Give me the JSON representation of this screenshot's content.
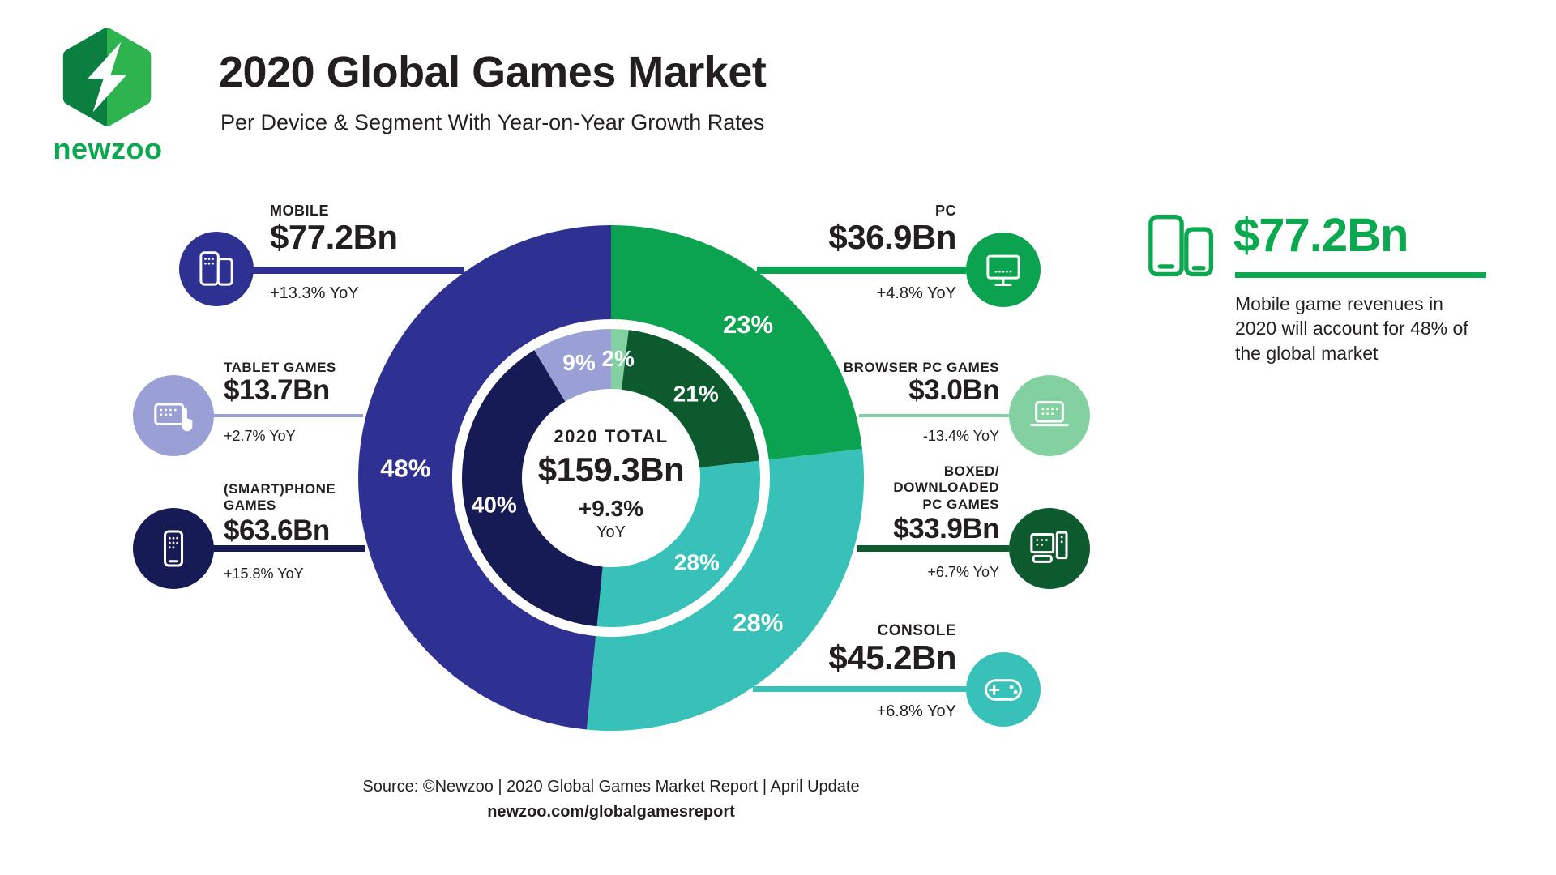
{
  "header": {
    "brand": "newzoo",
    "title": "2020 Global Games Market",
    "subtitle": "Per Device & Segment With Year-on-Year Growth Rates"
  },
  "colors": {
    "accent_green": "#0aa84f",
    "mobile_blue": "#2e3192",
    "smartphone_navy": "#171b55",
    "tablet_lavender": "#9aa0d6",
    "pc_green": "#0ba350",
    "browser_light_green": "#83d0a1",
    "boxed_dark_green": "#0d5a2e",
    "console_teal": "#37c1b8",
    "text_dark": "#231f20"
  },
  "chart_data": {
    "type": "pie",
    "variant": "double-ring donut (outer = device, inner = segment)",
    "title": "2020 Global Games Market",
    "subtitle": "Per Device & Segment With Year-on-Year Growth Rates",
    "total": {
      "label": "2020 TOTAL",
      "value_bn": 159.3,
      "value_label": "$159.3Bn",
      "yoy": "+9.3%",
      "yoy_suffix": "YoY"
    },
    "outer_ring_clockwise_from_top": [
      {
        "name": "PC",
        "value_bn": 36.9,
        "share_pct": 23,
        "yoy": "+4.8%",
        "color": "#0ba350"
      },
      {
        "name": "Console",
        "value_bn": 45.2,
        "share_pct": 28,
        "yoy": "+6.8%",
        "color": "#37c1b8"
      },
      {
        "name": "Mobile",
        "value_bn": 77.2,
        "share_pct": 48,
        "yoy": "+13.3%",
        "color": "#2e3192"
      }
    ],
    "inner_ring_clockwise_from_top": [
      {
        "name": "Browser PC Games",
        "value_bn": 3.0,
        "share_pct": 2,
        "yoy": "-13.4%",
        "color": "#83d0a1"
      },
      {
        "name": "Boxed/Downloaded PC Games",
        "value_bn": 33.9,
        "share_pct": 21,
        "yoy": "+6.7%",
        "color": "#0d5a2e"
      },
      {
        "name": "Console",
        "value_bn": 45.2,
        "share_pct": 28,
        "yoy": "+6.8%",
        "color": "#37c1b8"
      },
      {
        "name": "(Smart)phone Games",
        "value_bn": 63.6,
        "share_pct": 40,
        "yoy": "+15.8%",
        "color": "#171b55"
      },
      {
        "name": "Tablet Games",
        "value_bn": 13.7,
        "share_pct": 9,
        "yoy": "+2.7%",
        "color": "#9aa0d6"
      }
    ]
  },
  "callouts": {
    "mobile": {
      "label": "MOBILE",
      "value": "$77.2Bn",
      "yoy": "+13.3% YoY",
      "color": "#2e3192"
    },
    "tablet": {
      "label": "TABLET GAMES",
      "value": "$13.7Bn",
      "yoy": "+2.7% YoY",
      "color": "#9aa0d6"
    },
    "smartphone": {
      "label": "(SMART)PHONE GAMES",
      "value": "$63.6Bn",
      "yoy": "+15.8% YoY",
      "color": "#171b55"
    },
    "pc": {
      "label": "PC",
      "value": "$36.9Bn",
      "yoy": "+4.8% YoY",
      "color": "#0ba350"
    },
    "browser": {
      "label": "BROWSER PC GAMES",
      "value": "$3.0Bn",
      "yoy": "-13.4% YoY",
      "color": "#83d0a1"
    },
    "boxed": {
      "label": "BOXED/ DOWNLOADED PC GAMES",
      "value": "$33.9Bn",
      "yoy": "+6.7% YoY",
      "color": "#0d5a2e"
    },
    "console": {
      "label": "CONSOLE",
      "value": "$45.2Bn",
      "yoy": "+6.8% YoY",
      "color": "#37c1b8"
    }
  },
  "fact": {
    "value": "$77.2Bn",
    "text": "Mobile game revenues in 2020 will account for 48% of the global market",
    "accent": "#0aa84f"
  },
  "footer": {
    "source": "Source: ©Newzoo | 2020 Global Games Market Report | April Update",
    "url": "newzoo.com/globalgamesreport"
  }
}
